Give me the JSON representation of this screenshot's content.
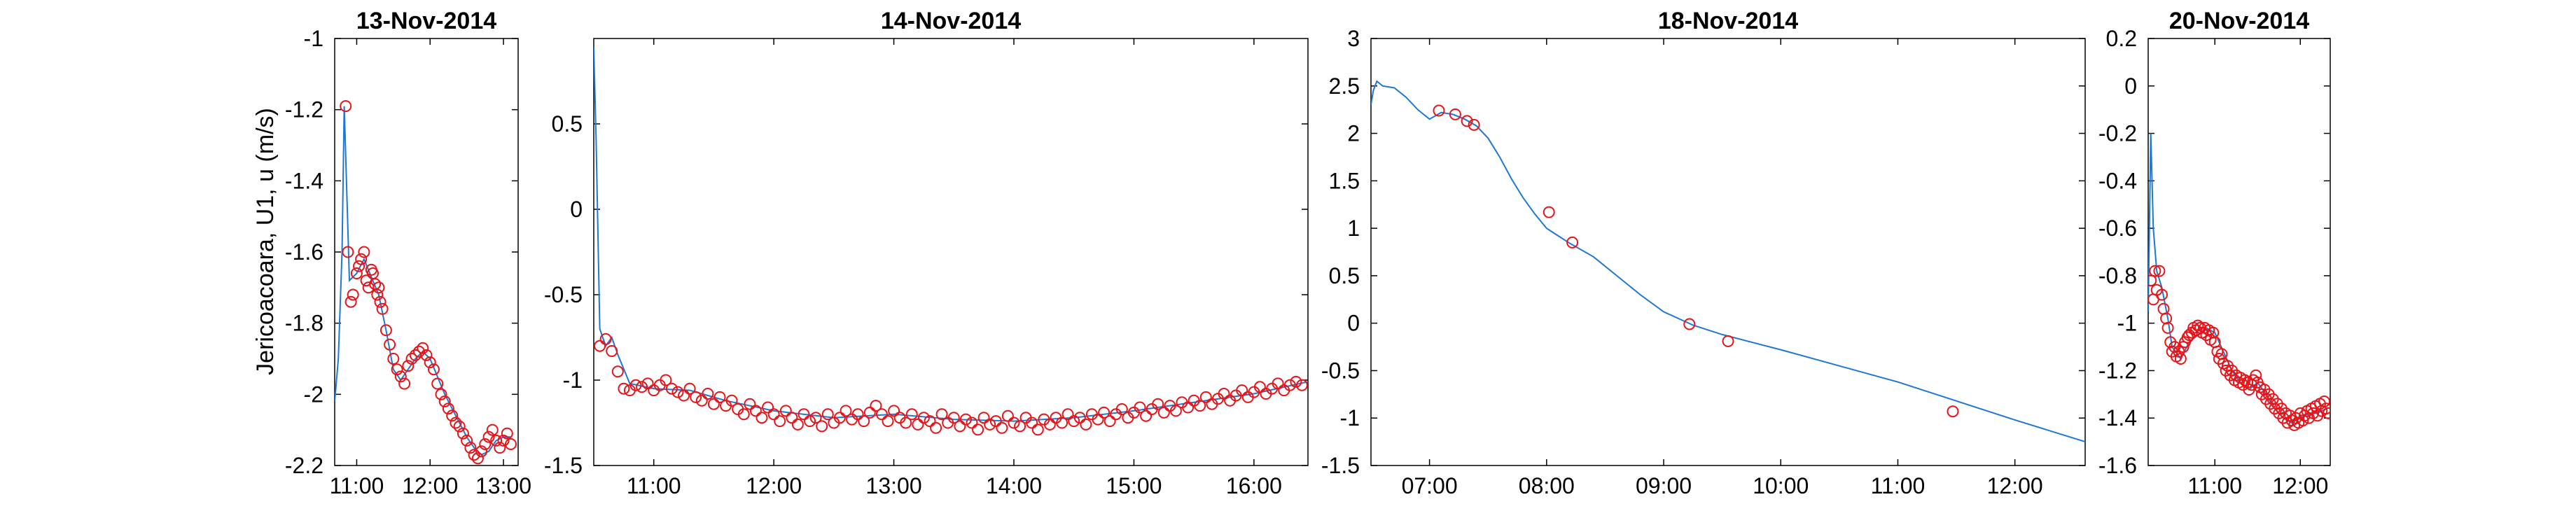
{
  "figure": {
    "ylabel": "Jericoacoara, U1, u (m/s)",
    "colors": {
      "line": "#1f77d4",
      "marker": "#e8141a",
      "axis": "#000000"
    }
  },
  "chart_data": [
    {
      "type": "line",
      "title": "13-Nov-2014",
      "ylabel": "Jericoacoara, U1, u (m/s)",
      "xlabel": "",
      "xlim": [
        10.7,
        13.2
      ],
      "ylim": [
        -2.2,
        -1.0
      ],
      "xticks": [
        11,
        12,
        13
      ],
      "xtick_labels": [
        "11:00",
        "12:00",
        "13:00"
      ],
      "yticks": [
        -2.2,
        -2.0,
        -1.8,
        -1.6,
        -1.4,
        -1.2,
        -1.0
      ],
      "ytick_labels": [
        "-2.2",
        "-2",
        "-1.8",
        "-1.6",
        "-1.4",
        "-1.2",
        "-1"
      ],
      "series": [
        {
          "style": "line",
          "x": [
            10.7,
            10.75,
            10.8,
            10.83,
            10.86,
            10.9,
            11.0,
            11.1,
            11.2,
            11.3,
            11.4,
            11.5,
            11.6,
            11.7,
            11.8,
            11.9,
            12.0,
            12.1,
            12.2,
            12.3,
            12.4,
            12.5,
            12.6,
            12.7,
            12.8,
            12.9,
            13.0,
            13.1
          ],
          "y": [
            -2.02,
            -1.9,
            -1.6,
            -1.19,
            -1.4,
            -1.68,
            -1.66,
            -1.62,
            -1.67,
            -1.72,
            -1.82,
            -1.93,
            -1.96,
            -1.93,
            -1.9,
            -1.88,
            -1.9,
            -1.95,
            -2.0,
            -2.04,
            -2.08,
            -2.12,
            -2.15,
            -2.17,
            -2.16,
            -2.13,
            -2.12,
            -2.12
          ]
        },
        {
          "style": "markers",
          "x": [
            10.85,
            10.88,
            10.92,
            10.95,
            11.0,
            11.03,
            11.06,
            11.1,
            11.13,
            11.16,
            11.2,
            11.22,
            11.25,
            11.28,
            11.3,
            11.32,
            11.35,
            11.4,
            11.45,
            11.5,
            11.55,
            11.6,
            11.65,
            11.7,
            11.75,
            11.8,
            11.85,
            11.9,
            11.95,
            12.0,
            12.05,
            12.1,
            12.15,
            12.2,
            12.25,
            12.3,
            12.35,
            12.4,
            12.45,
            12.5,
            12.55,
            12.6,
            12.65,
            12.7,
            12.75,
            12.8,
            12.85,
            12.9,
            12.95,
            13.0,
            13.05,
            13.1
          ],
          "y": [
            -1.19,
            -1.6,
            -1.74,
            -1.72,
            -1.66,
            -1.64,
            -1.62,
            -1.6,
            -1.68,
            -1.7,
            -1.65,
            -1.66,
            -1.69,
            -1.72,
            -1.7,
            -1.74,
            -1.76,
            -1.82,
            -1.86,
            -1.9,
            -1.93,
            -1.95,
            -1.97,
            -1.92,
            -1.9,
            -1.89,
            -1.88,
            -1.87,
            -1.89,
            -1.91,
            -1.93,
            -1.97,
            -2.0,
            -2.02,
            -2.04,
            -2.06,
            -2.08,
            -2.09,
            -2.11,
            -2.13,
            -2.15,
            -2.17,
            -2.18,
            -2.16,
            -2.14,
            -2.12,
            -2.1,
            -2.13,
            -2.15,
            -2.13,
            -2.11,
            -2.14
          ]
        }
      ]
    },
    {
      "type": "line",
      "title": "14-Nov-2014",
      "xlabel": "",
      "ylabel": "",
      "xlim": [
        10.5,
        16.45
      ],
      "ylim": [
        -1.5,
        1.0
      ],
      "xticks": [
        11,
        12,
        13,
        14,
        15,
        16
      ],
      "xtick_labels": [
        "11:00",
        "12:00",
        "13:00",
        "14:00",
        "15:00",
        "16:00"
      ],
      "yticks": [
        -1.5,
        -1.0,
        -0.5,
        0.0,
        0.5
      ],
      "ytick_labels": [
        "-1.5",
        "-1",
        "-0.5",
        "0",
        "0.5"
      ],
      "series": [
        {
          "style": "line",
          "x": [
            10.5,
            10.52,
            10.55,
            10.6,
            10.65,
            10.7,
            10.8,
            11.0,
            11.3,
            11.6,
            12.0,
            12.5,
            13.0,
            13.5,
            14.0,
            14.5,
            15.0,
            15.5,
            16.0,
            16.45
          ],
          "y": [
            0.95,
            0.4,
            -0.7,
            -0.8,
            -0.75,
            -0.85,
            -1.02,
            -1.05,
            -1.06,
            -1.12,
            -1.18,
            -1.22,
            -1.2,
            -1.23,
            -1.24,
            -1.22,
            -1.18,
            -1.13,
            -1.08,
            -1.01
          ]
        },
        {
          "style": "markers",
          "x": [
            10.55,
            10.6,
            10.65,
            10.7,
            10.75,
            10.8,
            10.85,
            10.9,
            10.95,
            11.0,
            11.05,
            11.1,
            11.15,
            11.2,
            11.25,
            11.3,
            11.35,
            11.4,
            11.45,
            11.5,
            11.55,
            11.6,
            11.65,
            11.7,
            11.75,
            11.8,
            11.85,
            11.9,
            11.95,
            12.0,
            12.05,
            12.1,
            12.15,
            12.2,
            12.25,
            12.3,
            12.35,
            12.4,
            12.45,
            12.5,
            12.55,
            12.6,
            12.65,
            12.7,
            12.75,
            12.8,
            12.85,
            12.9,
            12.95,
            13.0,
            13.05,
            13.1,
            13.15,
            13.2,
            13.25,
            13.3,
            13.35,
            13.4,
            13.45,
            13.5,
            13.55,
            13.6,
            13.65,
            13.7,
            13.75,
            13.8,
            13.85,
            13.9,
            13.95,
            14.0,
            14.05,
            14.1,
            14.15,
            14.2,
            14.25,
            14.3,
            14.35,
            14.4,
            14.45,
            14.5,
            14.55,
            14.6,
            14.65,
            14.7,
            14.75,
            14.8,
            14.85,
            14.9,
            14.95,
            15.0,
            15.05,
            15.1,
            15.15,
            15.2,
            15.25,
            15.3,
            15.35,
            15.4,
            15.45,
            15.5,
            15.55,
            15.6,
            15.65,
            15.7,
            15.75,
            15.8,
            15.85,
            15.9,
            15.95,
            16.0,
            16.05,
            16.1,
            16.15,
            16.2,
            16.25,
            16.3,
            16.35,
            16.4
          ],
          "y": [
            -0.8,
            -0.76,
            -0.83,
            -0.95,
            -1.05,
            -1.06,
            -1.03,
            -1.04,
            -1.02,
            -1.06,
            -1.03,
            -1.0,
            -1.05,
            -1.07,
            -1.09,
            -1.05,
            -1.1,
            -1.12,
            -1.08,
            -1.14,
            -1.1,
            -1.15,
            -1.12,
            -1.17,
            -1.2,
            -1.14,
            -1.18,
            -1.22,
            -1.16,
            -1.2,
            -1.24,
            -1.18,
            -1.22,
            -1.26,
            -1.2,
            -1.24,
            -1.22,
            -1.27,
            -1.2,
            -1.25,
            -1.22,
            -1.18,
            -1.23,
            -1.2,
            -1.24,
            -1.19,
            -1.15,
            -1.2,
            -1.24,
            -1.18,
            -1.22,
            -1.25,
            -1.2,
            -1.26,
            -1.22,
            -1.24,
            -1.28,
            -1.2,
            -1.25,
            -1.22,
            -1.27,
            -1.23,
            -1.25,
            -1.29,
            -1.22,
            -1.26,
            -1.24,
            -1.28,
            -1.21,
            -1.25,
            -1.27,
            -1.22,
            -1.25,
            -1.29,
            -1.23,
            -1.26,
            -1.22,
            -1.25,
            -1.2,
            -1.24,
            -1.22,
            -1.26,
            -1.2,
            -1.23,
            -1.19,
            -1.24,
            -1.2,
            -1.17,
            -1.22,
            -1.19,
            -1.16,
            -1.21,
            -1.17,
            -1.14,
            -1.19,
            -1.15,
            -1.18,
            -1.13,
            -1.16,
            -1.12,
            -1.15,
            -1.1,
            -1.14,
            -1.11,
            -1.08,
            -1.12,
            -1.09,
            -1.06,
            -1.1,
            -1.07,
            -1.04,
            -1.08,
            -1.05,
            -1.02,
            -1.06,
            -1.03,
            -1.01,
            -1.03
          ]
        }
      ]
    },
    {
      "type": "line",
      "title": "18-Nov-2014",
      "xlabel": "",
      "ylabel": "",
      "xlim": [
        6.5,
        12.6
      ],
      "ylim": [
        -1.5,
        3.0
      ],
      "xticks": [
        7,
        8,
        9,
        10,
        11,
        12
      ],
      "xtick_labels": [
        "07:00",
        "08:00",
        "09:00",
        "10:00",
        "11:00",
        "12:00"
      ],
      "yticks": [
        -1.5,
        -1.0,
        -0.5,
        0.0,
        0.5,
        1.0,
        1.5,
        2.0,
        2.5,
        3.0
      ],
      "ytick_labels": [
        "-1.5",
        "-1",
        "-0.5",
        "0",
        "0.5",
        "1",
        "1.5",
        "2",
        "2.5",
        "3"
      ],
      "series": [
        {
          "style": "line",
          "x": [
            6.5,
            6.52,
            6.55,
            6.6,
            6.7,
            6.8,
            6.9,
            7.0,
            7.1,
            7.2,
            7.3,
            7.4,
            7.5,
            7.6,
            7.7,
            7.8,
            7.9,
            8.0,
            8.1,
            8.2,
            8.4,
            8.6,
            8.8,
            9.0,
            9.25,
            9.5,
            9.75,
            10.0,
            10.5,
            11.0,
            11.5,
            12.0,
            12.6
          ],
          "y": [
            2.3,
            2.45,
            2.55,
            2.5,
            2.48,
            2.38,
            2.25,
            2.15,
            2.22,
            2.2,
            2.15,
            2.08,
            1.95,
            1.75,
            1.52,
            1.32,
            1.15,
            1.0,
            0.92,
            0.84,
            0.7,
            0.5,
            0.3,
            0.12,
            -0.02,
            -0.12,
            -0.2,
            -0.28,
            -0.45,
            -0.62,
            -0.82,
            -1.02,
            -1.25
          ]
        },
        {
          "style": "markers",
          "x": [
            7.08,
            7.22,
            7.32,
            7.38,
            8.02,
            8.22,
            9.22,
            9.55,
            11.47
          ],
          "y": [
            2.24,
            2.2,
            2.13,
            2.09,
            1.17,
            0.85,
            -0.01,
            -0.19,
            -0.93
          ]
        }
      ]
    },
    {
      "type": "line",
      "title": "20-Nov-2014",
      "xlabel": "",
      "ylabel": "",
      "xlim": [
        10.22,
        12.35
      ],
      "ylim": [
        -1.6,
        0.2
      ],
      "xticks": [
        11,
        12
      ],
      "xtick_labels": [
        "11:00",
        "12:00"
      ],
      "yticks": [
        -1.6,
        -1.4,
        -1.2,
        -1.0,
        -0.8,
        -0.6,
        -0.4,
        -0.2,
        0.0,
        0.2
      ],
      "ytick_labels": [
        "-1.6",
        "-1.4",
        "-1.2",
        "-1",
        "-0.8",
        "-0.6",
        "-0.4",
        "-0.2",
        "0",
        "0.2"
      ],
      "series": [
        {
          "style": "line",
          "x": [
            10.22,
            10.25,
            10.28,
            10.32,
            10.38,
            10.45,
            10.5,
            10.6,
            10.7,
            10.8,
            10.9,
            11.0,
            11.1,
            11.2,
            11.3,
            11.4,
            11.5,
            11.6,
            11.7,
            11.8,
            11.9,
            12.0,
            12.1,
            12.2,
            12.3
          ],
          "y": [
            -0.95,
            -0.2,
            -0.6,
            -0.78,
            -0.85,
            -0.98,
            -1.1,
            -1.15,
            -1.08,
            -1.05,
            -1.02,
            -1.04,
            -1.12,
            -1.2,
            -1.25,
            -1.28,
            -1.25,
            -1.3,
            -1.36,
            -1.4,
            -1.42,
            -1.4,
            -1.38,
            -1.38,
            -1.36
          ]
        },
        {
          "style": "markers",
          "x": [
            10.25,
            10.28,
            10.3,
            10.32,
            10.35,
            10.38,
            10.4,
            10.43,
            10.45,
            10.48,
            10.5,
            10.53,
            10.55,
            10.58,
            10.6,
            10.63,
            10.65,
            10.68,
            10.7,
            10.73,
            10.75,
            10.78,
            10.8,
            10.83,
            10.85,
            10.88,
            10.9,
            10.93,
            10.95,
            10.98,
            11.0,
            11.03,
            11.05,
            11.08,
            11.1,
            11.13,
            11.15,
            11.18,
            11.2,
            11.23,
            11.25,
            11.28,
            11.3,
            11.33,
            11.35,
            11.38,
            11.4,
            11.43,
            11.45,
            11.48,
            11.5,
            11.53,
            11.55,
            11.58,
            11.6,
            11.63,
            11.65,
            11.68,
            11.7,
            11.73,
            11.75,
            11.78,
            11.8,
            11.83,
            11.85,
            11.88,
            11.9,
            11.93,
            11.95,
            11.98,
            12.0,
            12.03,
            12.05,
            12.08,
            12.1,
            12.13,
            12.15,
            12.18,
            12.2,
            12.23,
            12.25,
            12.28,
            12.3,
            12.33
          ],
          "y": [
            -0.82,
            -0.9,
            -0.78,
            -0.86,
            -0.78,
            -0.88,
            -0.94,
            -0.98,
            -1.02,
            -1.08,
            -1.12,
            -1.1,
            -1.14,
            -1.12,
            -1.15,
            -1.1,
            -1.08,
            -1.06,
            -1.05,
            -1.04,
            -1.02,
            -1.03,
            -1.01,
            -1.02,
            -1.04,
            -1.02,
            -1.05,
            -1.03,
            -1.07,
            -1.04,
            -1.08,
            -1.12,
            -1.15,
            -1.13,
            -1.17,
            -1.2,
            -1.18,
            -1.22,
            -1.2,
            -1.24,
            -1.22,
            -1.25,
            -1.23,
            -1.26,
            -1.24,
            -1.25,
            -1.28,
            -1.26,
            -1.24,
            -1.22,
            -1.25,
            -1.27,
            -1.3,
            -1.28,
            -1.32,
            -1.3,
            -1.34,
            -1.32,
            -1.36,
            -1.34,
            -1.38,
            -1.36,
            -1.4,
            -1.38,
            -1.42,
            -1.39,
            -1.41,
            -1.43,
            -1.4,
            -1.42,
            -1.38,
            -1.41,
            -1.39,
            -1.37,
            -1.4,
            -1.36,
            -1.38,
            -1.35,
            -1.39,
            -1.34,
            -1.37,
            -1.33,
            -1.36,
            -1.38
          ]
        }
      ]
    }
  ]
}
